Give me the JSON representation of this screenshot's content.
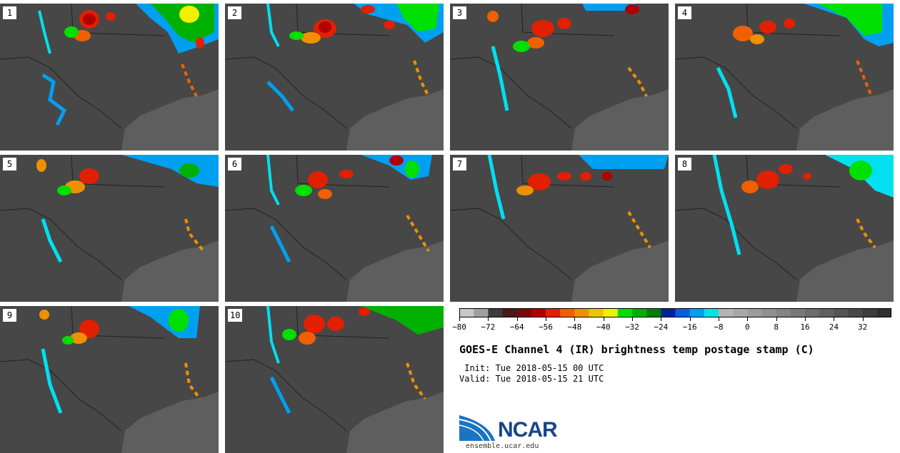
{
  "panels": [
    {
      "label": "1"
    },
    {
      "label": "2"
    },
    {
      "label": "3"
    },
    {
      "label": "4"
    },
    {
      "label": "5"
    },
    {
      "label": "6"
    },
    {
      "label": "7"
    },
    {
      "label": "8"
    },
    {
      "label": "9"
    },
    {
      "label": "10"
    }
  ],
  "colorbar": {
    "min": -80,
    "max": 40,
    "tick_values": [
      -80,
      -72,
      -64,
      -56,
      -48,
      -40,
      -32,
      -24,
      -16,
      -8,
      0,
      8,
      16,
      24,
      32
    ],
    "tick_labels": [
      "−80",
      "−72",
      "−64",
      "−56",
      "−48",
      "−40",
      "−32",
      "−24",
      "−16",
      "−8",
      "0",
      "8",
      "16",
      "24",
      "32"
    ],
    "colors": [
      "#c8c8c8",
      "#a0a0a0",
      "#3c3c3c",
      "#4a1a1a",
      "#7a0a0a",
      "#b00000",
      "#e02000",
      "#f06000",
      "#f09000",
      "#e8c800",
      "#f0f000",
      "#00e000",
      "#00b000",
      "#008000",
      "#0020a0",
      "#0060e0",
      "#00a0f0",
      "#00e0f0",
      "#b4b4b4",
      "#a8a8a8",
      "#9c9c9c",
      "#909090",
      "#848484",
      "#787878",
      "#6c6c6c",
      "#606060",
      "#545454",
      "#484848",
      "#3c3c3c",
      "#303030"
    ]
  },
  "title": "GOES-E Channel 4 (IR) brightness temp postage stamp (C)",
  "init_line": " Init: Tue 2018-05-15 00 UTC",
  "valid_line": "Valid: Tue 2018-05-15 21 UTC",
  "logo": {
    "name": "NCAR",
    "url": "ensemble.ucar.edu"
  }
}
